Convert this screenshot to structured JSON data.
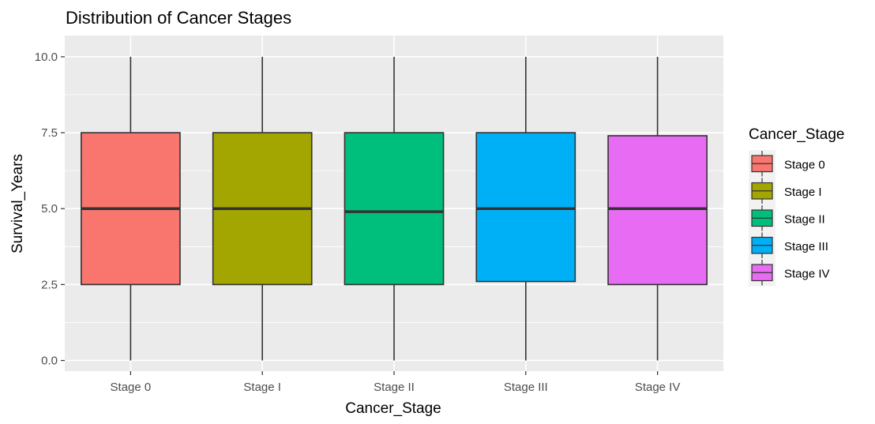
{
  "chart_data": {
    "type": "box",
    "title": "Distribution of Cancer Stages",
    "xlabel": "Cancer_Stage",
    "ylabel": "Survival_Years",
    "ylim": [
      -0.35,
      10.7
    ],
    "yticks": [
      0.0,
      2.5,
      5.0,
      7.5,
      10.0
    ],
    "ytick_labels": [
      "0.0",
      "2.5",
      "5.0",
      "7.5",
      "10.0"
    ],
    "grid": true,
    "legend_placement": "right",
    "legend_title": "Cancer_Stage",
    "categories": [
      "Stage 0",
      "Stage I",
      "Stage II",
      "Stage III",
      "Stage IV"
    ],
    "colors": [
      "#F8766D",
      "#A3A500",
      "#00BF7D",
      "#00B0F6",
      "#E76BF3"
    ],
    "boxes": [
      {
        "min": 0.0,
        "q1": 2.5,
        "median": 5.0,
        "q3": 7.5,
        "max": 10.0
      },
      {
        "min": 0.0,
        "q1": 2.5,
        "median": 5.0,
        "q3": 7.5,
        "max": 10.0
      },
      {
        "min": 0.0,
        "q1": 2.5,
        "median": 4.9,
        "q3": 7.5,
        "max": 10.0
      },
      {
        "min": 0.0,
        "q1": 2.6,
        "median": 5.0,
        "q3": 7.5,
        "max": 10.0
      },
      {
        "min": 0.0,
        "q1": 2.5,
        "median": 5.0,
        "q3": 7.4,
        "max": 10.0
      }
    ]
  }
}
